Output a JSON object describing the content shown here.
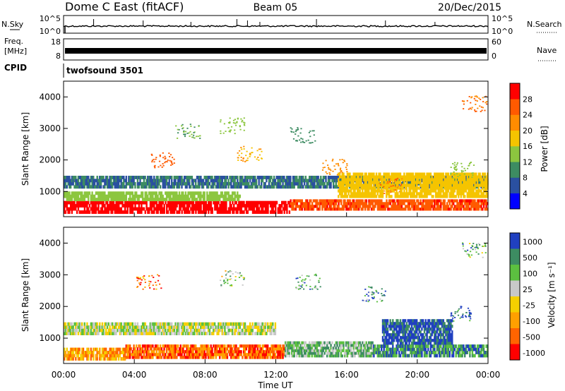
{
  "header": {
    "station": "Dome C East (fitACF)",
    "beam": "Beam 05",
    "date": "20/Dec/2015"
  },
  "mini_panels": {
    "left_labels": {
      "nsky": "N.Sky",
      "freq_line1": "Freq.",
      "freq_line2": "[MHz]",
      "cpid": "CPID"
    },
    "right_labels": {
      "nsearch": "N.Search",
      "nave": "Nave"
    },
    "nsky_ticks": [
      "10^5",
      "10^0"
    ],
    "nsearch_ticks": [
      "10^5",
      "10^0"
    ],
    "freq_ticks": [
      "18",
      "8"
    ],
    "nave_ticks": [
      "60",
      "0"
    ],
    "cpid_text": "twofsound 3501"
  },
  "chart_data": [
    {
      "type": "heatmap",
      "name": "power",
      "ylabel": "Slant Range [km]",
      "colorbar_label": "Power [dB]",
      "ylim": [
        200,
        4500
      ],
      "yticks": [
        1000,
        2000,
        3000,
        4000
      ],
      "colorbar_ticks": [
        4,
        8,
        12,
        16,
        20,
        24,
        28
      ],
      "colorbar_range": [
        0,
        32
      ],
      "colors": [
        "#0000ff",
        "#2a50a0",
        "#3d8c62",
        "#8cc63f",
        "#f5c400",
        "#ff8c00",
        "#ff5a00",
        "#ff0000"
      ],
      "bands": [
        {
          "t0": 0.0,
          "t1": 12.8,
          "r0": 300,
          "r1": 700,
          "value": 30
        },
        {
          "t0": 12.8,
          "t1": 24.0,
          "r0": 400,
          "r1": 750,
          "value": 27
        },
        {
          "t0": 0.0,
          "t1": 10.0,
          "r0": 700,
          "r1": 1000,
          "value": 14
        },
        {
          "t0": 0.0,
          "t1": 24.0,
          "r0": 1100,
          "r1": 1500,
          "value": 8
        },
        {
          "t0": 15.5,
          "t1": 24.0,
          "r0": 800,
          "r1": 1600,
          "value": 18
        }
      ],
      "patches": [
        {
          "t": 5.6,
          "r": 2000,
          "value": 26
        },
        {
          "t": 7.0,
          "r": 2900,
          "value": 12
        },
        {
          "t": 9.5,
          "r": 3100,
          "value": 14
        },
        {
          "t": 10.5,
          "r": 2200,
          "value": 20
        },
        {
          "t": 13.5,
          "r": 2800,
          "value": 10
        },
        {
          "t": 15.3,
          "r": 1800,
          "value": 22
        },
        {
          "t": 18.5,
          "r": 1200,
          "value": 24
        },
        {
          "t": 22.5,
          "r": 1700,
          "value": 14
        },
        {
          "t": 23.2,
          "r": 3800,
          "value": 24
        }
      ]
    },
    {
      "type": "heatmap",
      "name": "velocity",
      "xlabel": "Time UT",
      "ylabel": "Slant Range [km]",
      "colorbar_label": "Velocity [m s⁻¹]",
      "ylim": [
        200,
        4500
      ],
      "yticks": [
        1000,
        2000,
        3000,
        4000
      ],
      "xticks": [
        "00:00",
        "04:00",
        "08:00",
        "12:00",
        "16:00",
        "20:00",
        "00:00"
      ],
      "xlim_hours": [
        0,
        24
      ],
      "colorbar_ticks": [
        "1000",
        "500",
        "100",
        "25",
        "-25",
        "-100",
        "-500",
        "-1000"
      ],
      "colors": [
        "#2040c0",
        "#3d8c62",
        "#5cc040",
        "#c8c8c8",
        "#f5d000",
        "#ffa000",
        "#ff6400",
        "#ff0000"
      ],
      "bands": [
        {
          "t0": 0.0,
          "t1": 3.5,
          "r0": 300,
          "r1": 700,
          "value": 5
        },
        {
          "t0": 3.5,
          "t1": 12.5,
          "r0": 350,
          "r1": 800,
          "value": 6
        },
        {
          "t0": 0.0,
          "t1": 12.0,
          "r0": 1100,
          "r1": 1500,
          "value": 3
        },
        {
          "t0": 12.5,
          "t1": 17.5,
          "r0": 400,
          "r1": 900,
          "value": 2
        },
        {
          "t0": 17.5,
          "t1": 24.0,
          "r0": 400,
          "r1": 800,
          "value": 1
        },
        {
          "t0": 18.0,
          "t1": 22.0,
          "r0": 800,
          "r1": 1600,
          "value": 0
        }
      ],
      "patches": [
        {
          "t": 4.8,
          "r": 2800,
          "value": 6
        },
        {
          "t": 9.5,
          "r": 2900,
          "value": 3
        },
        {
          "t": 13.8,
          "r": 2800,
          "value": 1
        },
        {
          "t": 17.5,
          "r": 2400,
          "value": 1
        },
        {
          "t": 22.5,
          "r": 1800,
          "value": 0
        },
        {
          "t": 23.2,
          "r": 3800,
          "value": 2
        }
      ]
    }
  ],
  "colors": {
    "axis": "#000000",
    "background": "#ffffff"
  }
}
